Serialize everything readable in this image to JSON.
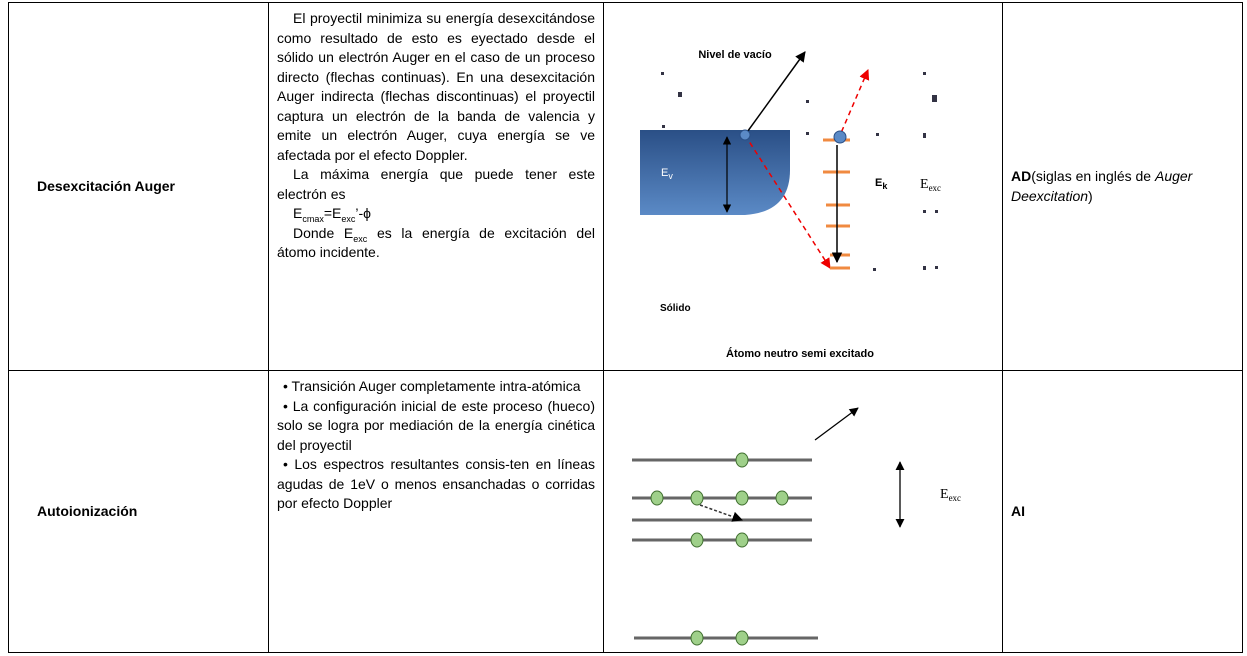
{
  "table": {
    "rows": [
      {
        "name": "Desexcitación Auger",
        "description": [
          [
            {
              "text": "El proyectil minimiza su energía desexcitándose como resultado de esto es eyectado desde el sólido un electrón Auger en el caso de un proceso directo (flechas continuas). En una desexcitación Auger indirecta (flechas discontinuas) el proyectil captura un electrón de la banda de valencia y emite un electrón Auger, cuya energía se ve afectada por el efecto Doppler."
            }
          ],
          [
            {
              "text": "La máxima energía que puede tener este electrón es"
            }
          ],
          [
            {
              "text": "E"
            },
            {
              "text": "cmax",
              "style": "sub"
            },
            {
              "text": "=E"
            },
            {
              "text": "exc",
              "style": "sub"
            },
            {
              "text": "’-ϕ"
            }
          ],
          [
            {
              "text": "Donde E"
            },
            {
              "text": "exc",
              "style": "sub"
            },
            {
              "text": " es la energía de excitación del átomo incidente."
            }
          ]
        ],
        "diagram": {
          "labels": [
            {
              "text": "Nivel de vacío"
            },
            {
              "text": "E",
              "sub": "v"
            },
            {
              "text": "E",
              "sub": "k"
            },
            {
              "text": "E",
              "sub": "exc"
            },
            {
              "text": "Sólido"
            },
            {
              "text": "Átomo neutro semi excitado"
            }
          ]
        },
        "abbreviation": [
          {
            "text": "AD",
            "style": "bold"
          },
          {
            "text": "(siglas en inglés de "
          },
          {
            "text": "Auger Deexcitation",
            "style": "italic"
          },
          {
            "text": ")"
          }
        ]
      },
      {
        "name": "Autoionización",
        "description": [
          [
            {
              "text": "Transición Auger completamente intra-atómica"
            }
          ],
          [
            {
              "text": "La configuración inicial de este proceso (hueco) solo se logra por mediación de la energía cinética del proyectil"
            }
          ],
          [
            {
              "text": "Los espectros resultantes consis-ten en líneas agudas de 1eV o menos ensanchadas o corridas por efecto Doppler"
            }
          ]
        ],
        "diagram": {
          "labels": [
            {
              "text": "E",
              "sub": "exc"
            }
          ]
        },
        "abbreviation": [
          {
            "text": "AI",
            "style": "bold"
          }
        ]
      }
    ]
  }
}
